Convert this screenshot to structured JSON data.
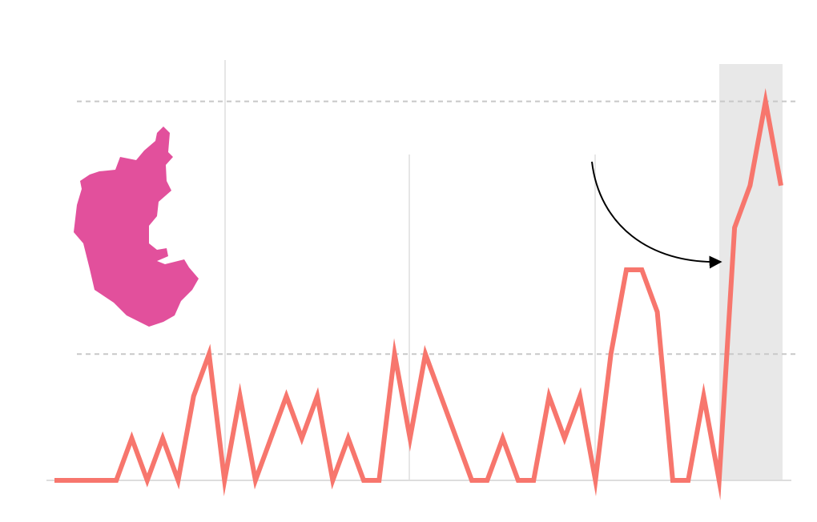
{
  "chart_data": {
    "type": "line",
    "color": "#f7766d",
    "categories": [
      null,
      null,
      null,
      null,
      null,
      null,
      null,
      null,
      null,
      null,
      null,
      null,
      null,
      null,
      null,
      null,
      null,
      null,
      null,
      null,
      null,
      null,
      null,
      null,
      null,
      null,
      null,
      null,
      null,
      null,
      null,
      null,
      null,
      null,
      null,
      null,
      null,
      null,
      null,
      null,
      null,
      null,
      null,
      null,
      null,
      null,
      null,
      null
    ],
    "values": [
      0,
      0,
      0,
      0,
      0,
      1,
      0,
      1,
      0,
      2,
      3,
      0,
      2,
      0,
      1,
      2,
      1,
      2,
      0,
      1,
      0,
      0,
      3,
      1,
      3,
      2,
      1,
      0,
      0,
      1,
      0,
      0,
      2,
      1,
      2,
      0,
      3,
      5,
      5,
      4,
      0,
      0,
      2,
      0,
      6,
      7,
      9,
      7
    ],
    "ylim": [
      0,
      10
    ],
    "yticks": [
      3,
      9
    ],
    "grid": true
  }
}
